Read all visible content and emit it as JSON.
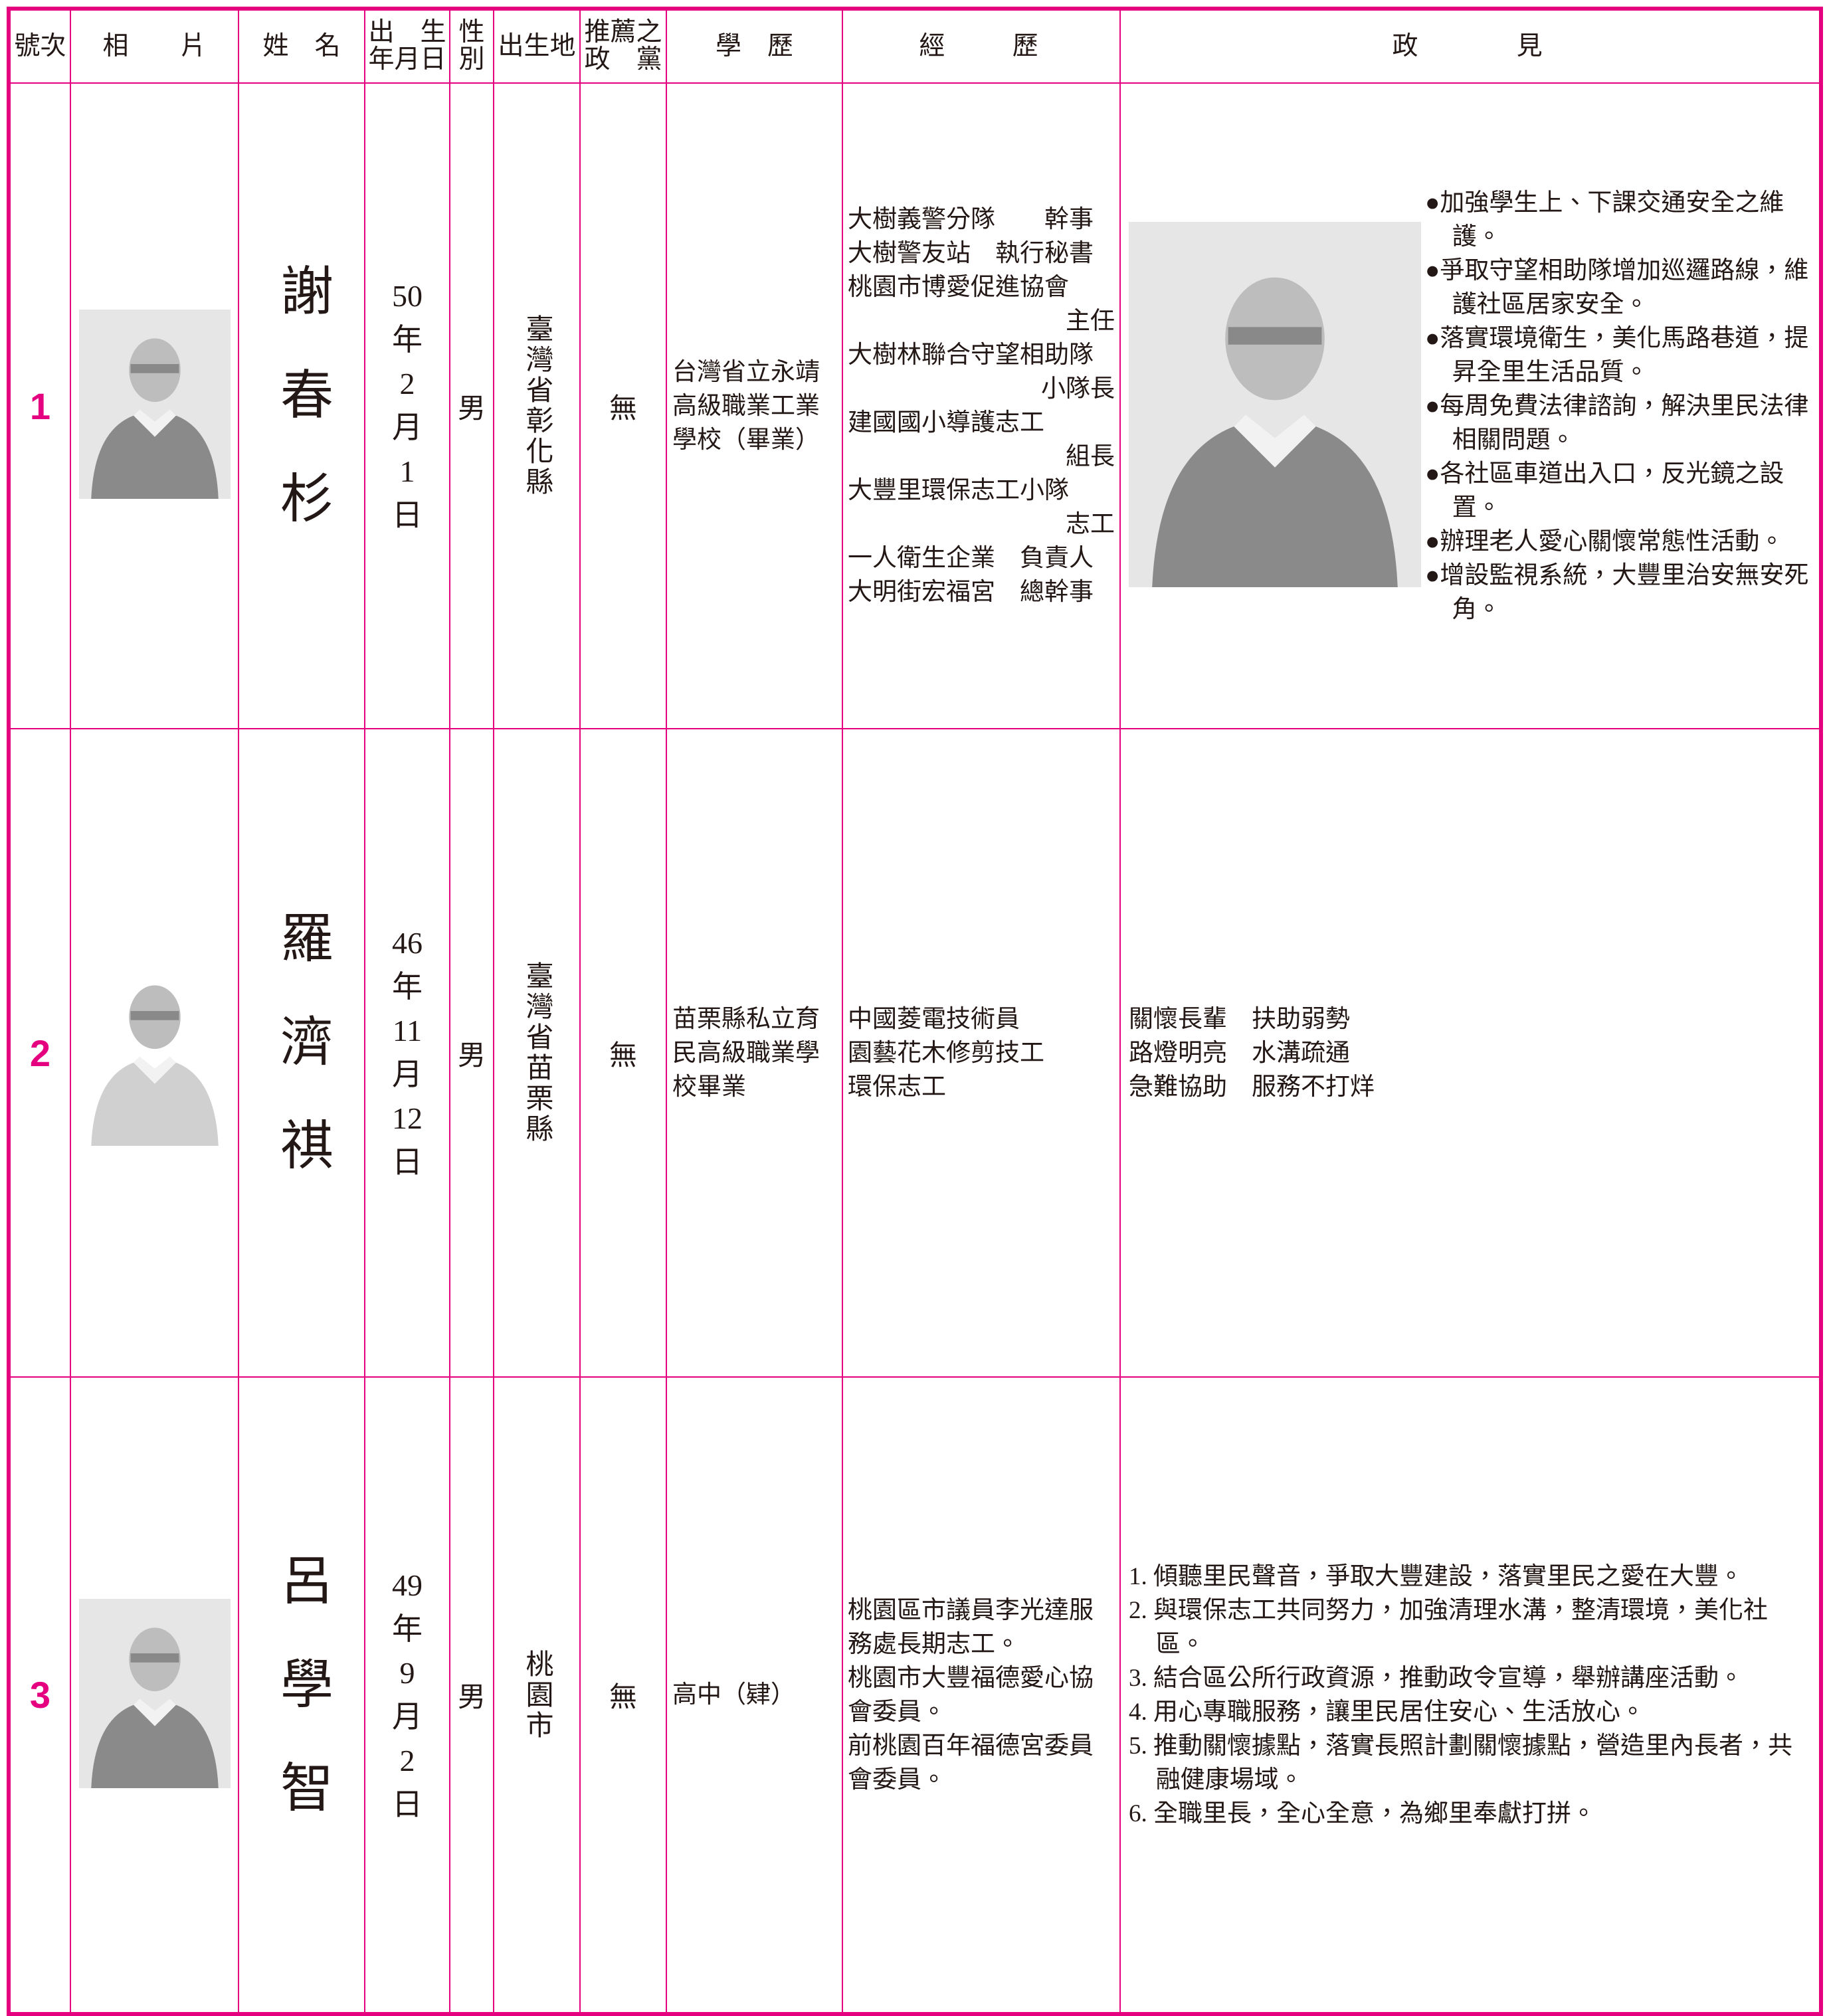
{
  "header": [
    "號次",
    "相　　片",
    "姓　名",
    "出　生\n年月日",
    "性\n別",
    "出生地",
    "推薦之\n政　黨",
    "學　歷",
    "經　　歷",
    "政　　　見"
  ],
  "candidates": [
    {
      "number": "1",
      "name": "謝春杉",
      "birth": [
        "50",
        "年",
        "2",
        "月",
        "1",
        "日"
      ],
      "gender": "男",
      "birthplace": "臺灣省彰化縣",
      "party": "無",
      "education": "台灣省立永靖高級職業工業學校（畢業）",
      "experience": [
        "大樹義警分隊　　幹事",
        "大樹警友站　執行秘書",
        "桃園市博愛促進協會",
        "主任",
        "大樹林聯合守望相助隊",
        "小隊長",
        "建國國小導護志工",
        "組長",
        "大豐里環保志工小隊",
        "志工",
        "一人衛生企業　負責人",
        "大明街宏福宮　總幹事"
      ],
      "policy": [
        "●加強學生上、下課交通安全之維護。",
        "●爭取守望相助隊增加巡邏路線，維護社區居家安全。",
        "●落實環境衛生，美化馬路巷道，提昇全里生活品質。",
        "●每周免費法律諮詢，解決里民法律相關問題。",
        "●各社區車道出入口，反光鏡之設置。",
        "●辦理老人愛心關懷常態性活動。",
        "●增設監視系統，大豐里治安無安死角。"
      ]
    },
    {
      "number": "2",
      "name": "羅濟祺",
      "birth": [
        "46",
        "年",
        "11",
        "月",
        "12",
        "日"
      ],
      "gender": "男",
      "birthplace": "臺灣省苗栗縣",
      "party": "無",
      "education": "苗栗縣私立育民高級職業學校畢業",
      "experience": [
        "中國菱電技術員",
        "園藝花木修剪技工",
        "環保志工"
      ],
      "policy": [
        "關懷長輩　扶助弱勢",
        "路燈明亮　水溝疏通",
        "急難協助　服務不打烊"
      ]
    },
    {
      "number": "3",
      "name": "呂學智",
      "birth": [
        "49",
        "年",
        "9",
        "月",
        "2",
        "日"
      ],
      "gender": "男",
      "birthplace": "桃園市",
      "party": "無",
      "education": "高中（肄）",
      "experience": [
        "桃園區市議員李光達服務處長期志工。",
        "桃園市大豐福德愛心協會委員。",
        "前桃園百年福德宮委員會委員。"
      ],
      "policy": [
        "1. 傾聽里民聲音，爭取大豐建設，落實里民之愛在大豐。",
        "2. 與環保志工共同努力，加強清理水溝，整清環境，美化社區。",
        "3. 結合區公所行政資源，推動政令宣導，舉辦講座活動。",
        "4. 用心專職服務，讓里民居住安心、生活放心。",
        "5. 推動關懷據點，落實長照計劃關懷據點，營造里內長者，共融健康場域。",
        "6. 全職里長，全心全意，為鄉里奉獻打拼。"
      ]
    }
  ]
}
